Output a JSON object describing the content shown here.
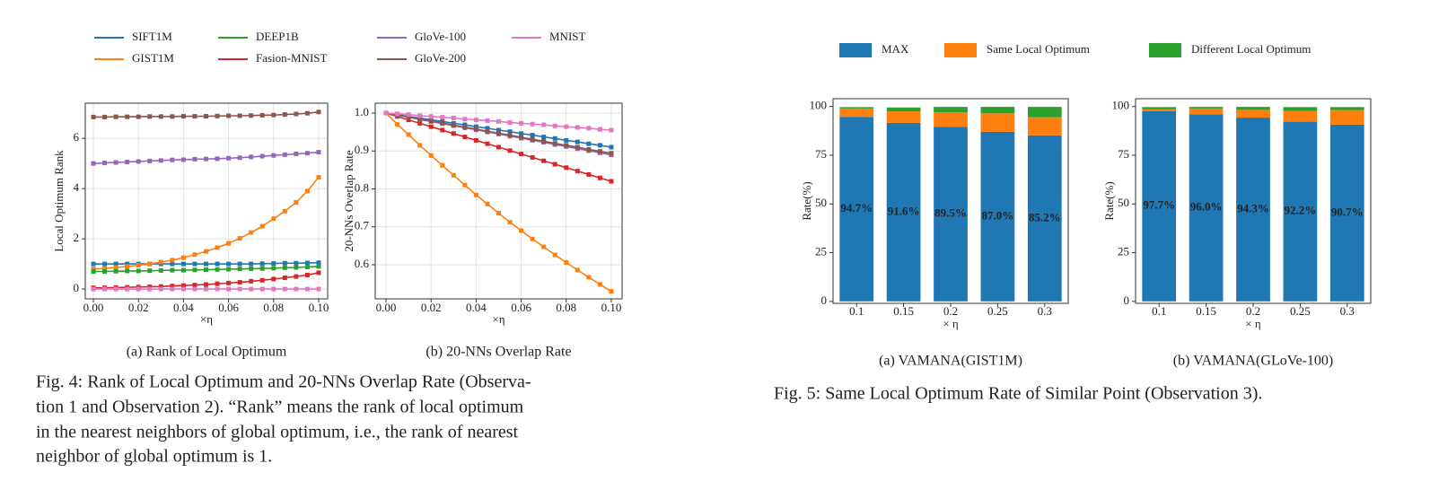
{
  "chart_data": [
    {
      "type": "line",
      "caption": "(a)  Rank of Local Optimum",
      "xlabel": "×η",
      "ylabel": "Local Optimum Rank",
      "grid": true,
      "xlim": [
        -0.0036,
        0.104
      ],
      "ylim": [
        -0.39,
        7.4
      ],
      "xticks": [
        {
          "value": 0,
          "label": "0.00"
        },
        0.02,
        0.04,
        0.06,
        0.08,
        {
          "value": 0.1,
          "label": "0.10"
        }
      ],
      "yticks": [
        0,
        2,
        4,
        6
      ],
      "x": [
        0,
        0.005,
        0.01,
        0.015,
        0.02,
        0.025,
        0.03,
        0.035,
        0.04,
        0.045,
        0.05,
        0.055,
        0.06,
        0.065,
        0.07,
        0.075,
        0.08,
        0.085,
        0.09,
        0.095,
        0.1
      ],
      "series": [
        {
          "name": "SIFT1M",
          "color": "#1f77b4",
          "values": [
            1.0,
            1.0,
            1.0,
            1.0,
            1.0,
            1.0,
            1.0,
            1.0,
            1.0,
            1.0,
            1.0,
            1.0,
            1.0,
            1.0,
            1.0,
            1.01,
            1.02,
            1.03,
            1.03,
            1.04,
            1.05
          ]
        },
        {
          "name": "GIST1M",
          "color": "#ff7f0e",
          "values": [
            0.8,
            0.82,
            0.86,
            0.9,
            0.95,
            1.0,
            1.07,
            1.15,
            1.25,
            1.37,
            1.5,
            1.65,
            1.82,
            2.02,
            2.25,
            2.5,
            2.8,
            3.1,
            3.45,
            3.9,
            4.45
          ]
        },
        {
          "name": "DEEP1B",
          "color": "#2ca02c",
          "values": [
            0.7,
            0.7,
            0.71,
            0.72,
            0.72,
            0.73,
            0.74,
            0.75,
            0.75,
            0.76,
            0.77,
            0.78,
            0.79,
            0.8,
            0.81,
            0.82,
            0.83,
            0.85,
            0.86,
            0.88,
            0.9
          ]
        },
        {
          "name": "Fasion-MNIST",
          "color": "#d62728",
          "values": [
            0.05,
            0.05,
            0.06,
            0.07,
            0.08,
            0.09,
            0.1,
            0.12,
            0.14,
            0.16,
            0.18,
            0.21,
            0.24,
            0.27,
            0.31,
            0.35,
            0.4,
            0.45,
            0.5,
            0.56,
            0.65
          ]
        },
        {
          "name": "GloVe-100",
          "color": "#9467bd",
          "values": [
            5.0,
            5.02,
            5.04,
            5.06,
            5.08,
            5.1,
            5.12,
            5.14,
            5.15,
            5.17,
            5.18,
            5.19,
            5.21,
            5.23,
            5.26,
            5.29,
            5.32,
            5.35,
            5.38,
            5.41,
            5.45
          ]
        },
        {
          "name": "GloVe-200",
          "color": "#8c564b",
          "values": [
            6.85,
            6.85,
            6.86,
            6.86,
            6.86,
            6.87,
            6.87,
            6.87,
            6.88,
            6.88,
            6.88,
            6.89,
            6.9,
            6.9,
            6.91,
            6.92,
            6.93,
            6.95,
            6.97,
            7.0,
            7.05
          ]
        },
        {
          "name": "MNIST",
          "color": "#e377c2",
          "values": [
            0,
            0,
            0,
            0,
            0,
            0,
            0,
            0,
            0,
            0,
            0,
            0,
            0,
            0,
            0,
            0,
            0,
            0,
            0,
            0,
            0
          ]
        }
      ]
    },
    {
      "type": "line",
      "caption": "(b)  20-NNs Overlap Rate",
      "xlabel": "×η",
      "ylabel": "20-NNs Overlap Rate",
      "grid": true,
      "xlim": [
        -0.0048,
        0.1048
      ],
      "ylim": [
        0.51,
        1.026
      ],
      "xticks": [
        {
          "value": 0,
          "label": "0.00"
        },
        0.02,
        0.04,
        0.06,
        0.08,
        {
          "value": 0.1,
          "label": "0.10"
        }
      ],
      "yticks": [
        0.6,
        0.7,
        0.8,
        0.9,
        {
          "value": 1,
          "label": "1.0"
        }
      ],
      "x": [
        0,
        0.005,
        0.01,
        0.015,
        0.02,
        0.025,
        0.03,
        0.035,
        0.04,
        0.045,
        0.05,
        0.055,
        0.06,
        0.065,
        0.07,
        0.075,
        0.08,
        0.085,
        0.09,
        0.095,
        0.1
      ],
      "series": [
        {
          "color": "#1f77b4",
          "values": [
            1.0,
            0.996,
            0.991,
            0.987,
            0.982,
            0.978,
            0.973,
            0.969,
            0.964,
            0.96,
            0.955,
            0.951,
            0.946,
            0.942,
            0.937,
            0.933,
            0.928,
            0.924,
            0.919,
            0.915,
            0.91
          ]
        },
        {
          "color": "#ff7f0e",
          "values": [
            1.0,
            0.97,
            0.943,
            0.915,
            0.888,
            0.862,
            0.836,
            0.81,
            0.784,
            0.76,
            0.736,
            0.712,
            0.69,
            0.668,
            0.647,
            0.626,
            0.606,
            0.586,
            0.567,
            0.548,
            0.53
          ]
        },
        {
          "color": "#2ca02c",
          "values": [
            1.0,
            0.995,
            0.989,
            0.984,
            0.978,
            0.973,
            0.967,
            0.962,
            0.956,
            0.951,
            0.945,
            0.94,
            0.934,
            0.929,
            0.923,
            0.918,
            0.912,
            0.907,
            0.901,
            0.896,
            0.89
          ]
        },
        {
          "color": "#d62728",
          "values": [
            1.0,
            0.991,
            0.982,
            0.973,
            0.964,
            0.955,
            0.946,
            0.937,
            0.928,
            0.919,
            0.91,
            0.901,
            0.892,
            0.883,
            0.874,
            0.865,
            0.856,
            0.847,
            0.838,
            0.829,
            0.82
          ]
        },
        {
          "color": "#9467bd",
          "values": [
            1.0,
            0.994,
            0.989,
            0.983,
            0.978,
            0.972,
            0.967,
            0.961,
            0.956,
            0.95,
            0.945,
            0.939,
            0.934,
            0.928,
            0.923,
            0.917,
            0.912,
            0.906,
            0.901,
            0.895,
            0.89
          ]
        },
        {
          "color": "#8c564b",
          "values": [
            1.0,
            0.995,
            0.99,
            0.984,
            0.979,
            0.974,
            0.968,
            0.963,
            0.958,
            0.952,
            0.947,
            0.942,
            0.936,
            0.931,
            0.926,
            0.92,
            0.915,
            0.91,
            0.904,
            0.899,
            0.894
          ]
        },
        {
          "color": "#e377c2",
          "values": [
            1.0,
            0.998,
            0.996,
            0.993,
            0.991,
            0.989,
            0.987,
            0.984,
            0.982,
            0.98,
            0.978,
            0.975,
            0.973,
            0.971,
            0.969,
            0.966,
            0.964,
            0.962,
            0.96,
            0.957,
            0.955
          ]
        }
      ]
    },
    {
      "type": "stacked_bar",
      "caption": "(a)  VAMANA(GIST1M)",
      "xlabel": "× η",
      "ylabel": "Rate(%)",
      "grid": false,
      "ylim": [
        -1,
        104
      ],
      "yticks": [
        0,
        25,
        50,
        75,
        100
      ],
      "categories": [
        "0.1",
        "0.15",
        "0.2",
        "0.25",
        "0.3"
      ],
      "series": [
        {
          "name": "MAX",
          "color": "#1f77b4",
          "values": [
            94.7,
            91.6,
            89.5,
            87.0,
            85.2
          ],
          "value_labels": [
            "94.7%",
            "91.6%",
            "89.5%",
            "87.0%",
            "85.2%"
          ]
        },
        {
          "name": "Same Local Optimum",
          "color": "#ff7f0e",
          "values": [
            4.3,
            5.9,
            7.5,
            9.5,
            9.3
          ]
        },
        {
          "name": "Different Local Optimum",
          "color": "#2ca02c",
          "values": [
            0.7,
            2.0,
            2.8,
            3.3,
            5.3
          ]
        }
      ]
    },
    {
      "type": "stacked_bar",
      "caption": "(b)  VAMANA(GLoVe-100)",
      "xlabel": "× η",
      "ylabel": "Rate(%)",
      "grid": false,
      "ylim": [
        -1,
        104
      ],
      "yticks": [
        0,
        25,
        50,
        75,
        100
      ],
      "categories": [
        "0.1",
        "0.15",
        "0.2",
        "0.25",
        "0.3"
      ],
      "series": [
        {
          "color": "#1f77b4",
          "values": [
            97.7,
            96.0,
            94.3,
            92.2,
            90.7
          ],
          "value_labels": [
            "97.7%",
            "96.0%",
            "94.3%",
            "92.2%",
            "90.7%"
          ]
        },
        {
          "color": "#ff7f0e",
          "values": [
            1.0,
            3.0,
            4.0,
            5.5,
            7.5
          ]
        },
        {
          "color": "#2ca02c",
          "values": [
            1.0,
            0.8,
            1.5,
            2.0,
            1.5
          ]
        }
      ]
    }
  ],
  "figure_4_caption": [
    "Fig. 4: Rank of Local Optimum and 20-NNs Overlap Rate (Observa-",
    "tion 1 and Observation 2). “Rank” means the rank of local optimum",
    "in the nearest neighbors of global optimum, i.e., the rank of nearest",
    "neighbor of global optimum is 1."
  ],
  "figure_5_caption": "Fig. 5: Same Local Optimum Rate of Similar Point (Observation 3)."
}
